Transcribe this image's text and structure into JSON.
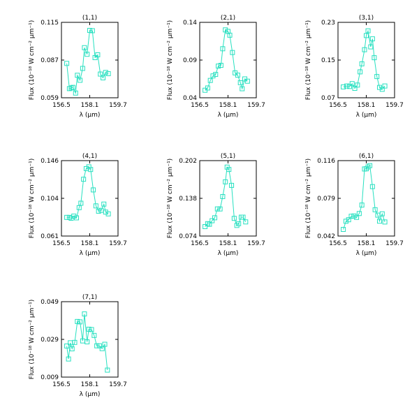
{
  "figure": {
    "series_color": "#27e0c0"
  },
  "chart_data": [
    {
      "type": "line",
      "title": "(1,1)",
      "xlabel": "λ (μm)",
      "ylabel": "Flux (10⁻¹⁸ W cm⁻² μm⁻¹)",
      "xlim": [
        156.5,
        159.7
      ],
      "ylim": [
        0.059,
        0.115
      ],
      "xticks": [
        "156.5",
        "158.1",
        "159.7"
      ],
      "yticks": [
        "0.059",
        "0.087",
        "0.115"
      ],
      "x": [
        156.8,
        156.95,
        157.05,
        157.15,
        157.3,
        157.4,
        157.55,
        157.7,
        157.8,
        157.95,
        158.1,
        158.25,
        158.4,
        158.55,
        158.7,
        158.85,
        159.0,
        159.15
      ],
      "y": [
        0.0845,
        0.0658,
        0.0663,
        0.0667,
        0.0625,
        0.0757,
        0.072,
        0.0808,
        0.0962,
        0.0913,
        0.109,
        0.1088,
        0.0888,
        0.0909,
        0.0766,
        0.0738,
        0.0778,
        0.0769
      ],
      "marker": "square"
    },
    {
      "type": "line",
      "title": "(2,1)",
      "xlabel": "λ (μm)",
      "ylabel": "Flux (10⁻¹⁸ W cm⁻² μm⁻¹)",
      "xlim": [
        156.5,
        159.7
      ],
      "ylim": [
        0.04,
        0.14
      ],
      "xticks": [
        "156.5",
        "158.1",
        "159.7"
      ],
      "yticks": [
        "0.04",
        "0.09",
        "0.14"
      ],
      "x": [
        156.8,
        156.95,
        157.1,
        157.25,
        157.4,
        157.55,
        157.7,
        157.8,
        157.95,
        158.1,
        158.2,
        158.35,
        158.5,
        158.65,
        158.8,
        158.9,
        159.05,
        159.2
      ],
      "y": [
        0.05,
        0.053,
        0.063,
        0.069,
        0.071,
        0.082,
        0.083,
        0.105,
        0.13,
        0.128,
        0.123,
        0.1,
        0.073,
        0.07,
        0.06,
        0.052,
        0.065,
        0.062
      ],
      "marker": "square"
    },
    {
      "type": "line",
      "title": "(3,1)",
      "xlabel": "λ (μm)",
      "ylabel": "Flux (10⁻¹⁸ W cm⁻² μm⁻¹)",
      "xlim": [
        156.5,
        159.7
      ],
      "ylim": [
        0.07,
        0.23
      ],
      "xticks": [
        "156.5",
        "158.1",
        "159.7"
      ],
      "yticks": [
        "0.07",
        "0.15",
        "0.23"
      ],
      "x": [
        156.8,
        157.0,
        157.15,
        157.3,
        157.45,
        157.6,
        157.75,
        157.85,
        158.0,
        158.1,
        158.2,
        158.35,
        158.45,
        158.55,
        158.7,
        158.85,
        159.0,
        159.15
      ],
      "y": [
        0.093,
        0.095,
        0.094,
        0.1,
        0.09,
        0.097,
        0.125,
        0.142,
        0.172,
        0.202,
        0.212,
        0.178,
        0.195,
        0.155,
        0.115,
        0.092,
        0.088,
        0.095
      ],
      "marker": "square"
    },
    {
      "type": "line",
      "title": "(4,1)",
      "xlabel": "λ (μm)",
      "ylabel": "Flux (10⁻¹⁸ W cm⁻² μm⁻¹)",
      "xlim": [
        156.5,
        159.7
      ],
      "ylim": [
        0.061,
        0.146
      ],
      "xticks": [
        "156.5",
        "158.1",
        "159.7"
      ],
      "yticks": [
        "0.061",
        "0.104",
        "0.146"
      ],
      "x": [
        156.8,
        156.95,
        157.05,
        157.2,
        157.35,
        157.5,
        157.6,
        157.75,
        157.9,
        158.05,
        158.15,
        158.3,
        158.45,
        158.6,
        158.75,
        158.9,
        159.0,
        159.15
      ],
      "y": [
        0.082,
        0.082,
        0.081,
        0.0835,
        0.0815,
        0.093,
        0.098,
        0.125,
        0.137,
        0.139,
        0.136,
        0.113,
        0.095,
        0.089,
        0.09,
        0.097,
        0.088,
        0.086
      ],
      "marker": "square"
    },
    {
      "type": "line",
      "title": "(5,1)",
      "xlabel": "λ (μm)",
      "ylabel": "Flux (10⁻¹⁸ W cm⁻² μm⁻¹)",
      "xlim": [
        156.5,
        159.7
      ],
      "ylim": [
        0.074,
        0.202
      ],
      "xticks": [
        "156.5",
        "158.1",
        "159.7"
      ],
      "yticks": [
        "0.074",
        "0.138",
        "0.202"
      ],
      "x": [
        156.8,
        156.95,
        157.05,
        157.2,
        157.35,
        157.5,
        157.65,
        157.8,
        157.95,
        158.05,
        158.15,
        158.3,
        158.45,
        158.6,
        158.7,
        158.85,
        158.95,
        159.1
      ],
      "y": [
        0.09,
        0.095,
        0.094,
        0.1,
        0.105,
        0.12,
        0.12,
        0.141,
        0.166,
        0.191,
        0.187,
        0.16,
        0.104,
        0.092,
        0.095,
        0.106,
        0.106,
        0.098
      ],
      "marker": "square"
    },
    {
      "type": "line",
      "title": "(6,1)",
      "xlabel": "λ (μm)",
      "ylabel": "Flux (10⁻¹⁸ W cm⁻² μm⁻¹)",
      "xlim": [
        156.5,
        159.7
      ],
      "ylim": [
        0.042,
        0.116
      ],
      "xticks": [
        "156.5",
        "158.1",
        "159.7"
      ],
      "yticks": [
        "0.042",
        "0.079",
        "0.116"
      ],
      "x": [
        156.8,
        156.95,
        157.1,
        157.25,
        157.4,
        157.55,
        157.7,
        157.85,
        158.0,
        158.1,
        158.2,
        158.3,
        158.45,
        158.6,
        158.75,
        158.85,
        159.0,
        159.15
      ],
      "y": [
        0.0485,
        0.0565,
        0.058,
        0.0614,
        0.0617,
        0.0603,
        0.0641,
        0.0724,
        0.1078,
        0.108,
        0.1098,
        0.1111,
        0.0905,
        0.0678,
        0.0625,
        0.0566,
        0.0638,
        0.0558
      ],
      "marker": "square"
    },
    {
      "type": "line",
      "title": "(7,1)",
      "xlabel": "λ (μm)",
      "ylabel": "Flux (10⁻¹⁸ W cm⁻² μm⁻¹)",
      "xlim": [
        156.5,
        159.7
      ],
      "ylim": [
        0.009,
        0.049
      ],
      "xticks": [
        "156.5",
        "158.1",
        "159.7"
      ],
      "yticks": [
        "0.009",
        "0.029",
        "0.049"
      ],
      "x": [
        156.8,
        156.9,
        157.0,
        157.1,
        157.25,
        157.4,
        157.55,
        157.7,
        157.8,
        157.95,
        158.05,
        158.2,
        158.35,
        158.5,
        158.65,
        158.8,
        158.95,
        159.1
      ],
      "y": [
        0.0255,
        0.0186,
        0.0272,
        0.024,
        0.0274,
        0.0385,
        0.0383,
        0.0282,
        0.0425,
        0.0277,
        0.0344,
        0.0342,
        0.0311,
        0.0256,
        0.0256,
        0.0241,
        0.0264,
        0.0127
      ],
      "marker": "square"
    }
  ]
}
